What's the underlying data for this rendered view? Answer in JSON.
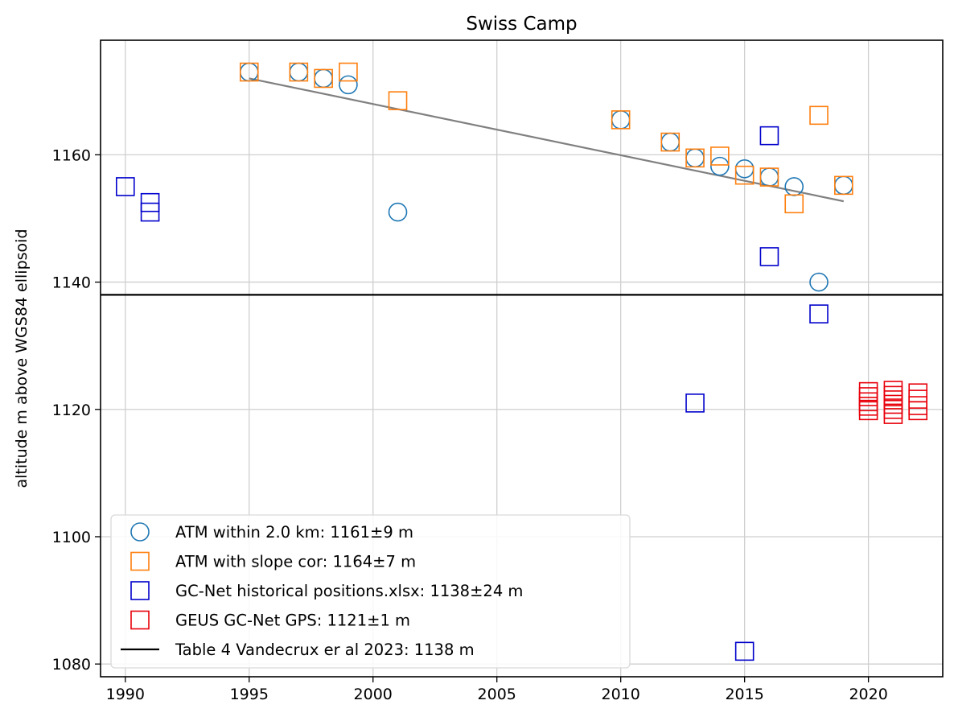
{
  "chart_data": {
    "type": "scatter",
    "title": "Swiss Camp",
    "xlabel": "",
    "ylabel": "altitude m above WGS84 ellipsoid",
    "xlim": [
      1989,
      2023
    ],
    "ylim": [
      1078,
      1178
    ],
    "xticks": [
      1990,
      1995,
      2000,
      2005,
      2010,
      2015,
      2020
    ],
    "yticks": [
      1080,
      1100,
      1120,
      1140,
      1160
    ],
    "grid": true,
    "legend_position": "lower-left",
    "series": [
      {
        "name": "ATM within 2.0 km: 1161±9 m",
        "marker": "circle",
        "color": "#1f77b4",
        "points": [
          [
            1995,
            1173
          ],
          [
            1997,
            1173
          ],
          [
            1998,
            1172
          ],
          [
            1999,
            1171
          ],
          [
            2001,
            1151
          ],
          [
            2010,
            1165.5
          ],
          [
            2012,
            1162
          ],
          [
            2013,
            1159.5
          ],
          [
            2014,
            1158.2
          ],
          [
            2015,
            1157.8
          ],
          [
            2016,
            1156.5
          ],
          [
            2017,
            1155
          ],
          [
            2018,
            1140
          ],
          [
            2019,
            1155.2
          ]
        ]
      },
      {
        "name": "ATM with slope cor: 1164±7 m",
        "marker": "square",
        "color": "#ff7f0e",
        "points": [
          [
            1995,
            1173
          ],
          [
            1997,
            1173
          ],
          [
            1998,
            1172
          ],
          [
            1999,
            1173
          ],
          [
            2001,
            1168.5
          ],
          [
            2010,
            1165.5
          ],
          [
            2012,
            1162
          ],
          [
            2013,
            1159.5
          ],
          [
            2014,
            1159.8
          ],
          [
            2015,
            1156.8
          ],
          [
            2016,
            1156.5
          ],
          [
            2017,
            1152.3
          ],
          [
            2018,
            1166.2
          ],
          [
            2019,
            1155.2
          ]
        ]
      },
      {
        "name": "GC-Net historical positions.xlsx: 1138±24 m",
        "marker": "square",
        "color": "#0000cc",
        "points": [
          [
            1990,
            1155
          ],
          [
            1991,
            1152.5
          ],
          [
            1991,
            1151
          ],
          [
            2013,
            1121
          ],
          [
            2015,
            1082
          ],
          [
            2016,
            1163
          ],
          [
            2016,
            1144
          ],
          [
            2018,
            1135
          ]
        ]
      },
      {
        "name": "GEUS GC-Net GPS: 1121±1 m",
        "marker": "square",
        "color": "#e8000b",
        "points": [
          [
            2020,
            1119.8
          ],
          [
            2020,
            1120.5
          ],
          [
            2020,
            1121.2
          ],
          [
            2020,
            1122
          ],
          [
            2020,
            1122.8
          ],
          [
            2021,
            1119.2
          ],
          [
            2021,
            1120
          ],
          [
            2021,
            1120.8
          ],
          [
            2021,
            1121.5
          ],
          [
            2021,
            1122.2
          ],
          [
            2021,
            1123
          ],
          [
            2022,
            1119.8
          ],
          [
            2022,
            1120.6
          ],
          [
            2022,
            1121.6
          ],
          [
            2022,
            1122.6
          ]
        ]
      }
    ],
    "lines": [
      {
        "name": "Table 4 Vandecrux er al 2023: 1138 m",
        "kind": "hline",
        "color": "#000000",
        "y": 1138
      },
      {
        "name": "",
        "kind": "trend",
        "color": "#808080",
        "points": [
          [
            1995,
            1172
          ],
          [
            2019,
            1152.7
          ]
        ]
      }
    ]
  }
}
